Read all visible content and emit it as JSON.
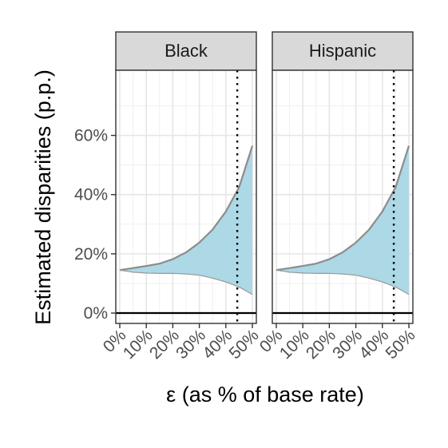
{
  "chart_data": {
    "type": "area",
    "xlabel": "ε (as % of base rate)",
    "ylabel": "Estimated disparities (p.p.)",
    "x_ticks": [
      "0%",
      "10%",
      "20%",
      "30%",
      "40%",
      "50%"
    ],
    "x_tick_values": [
      0,
      10,
      20,
      30,
      40,
      50
    ],
    "y_ticks": [
      "0%",
      "20%",
      "40%",
      "60%"
    ],
    "y_tick_values": [
      0,
      20,
      40,
      60
    ],
    "xlim": [
      -1.5,
      51.5
    ],
    "ylim": [
      -3.5,
      82
    ],
    "grid": true,
    "reference_line": {
      "y": 0
    },
    "panels": [
      {
        "name": "Black",
        "vline_x": 44.3,
        "series": [
          {
            "name": "upper_bound",
            "x": [
              0,
              5,
              10,
              15,
              20,
              25,
              30,
              35,
              40,
              45,
              50
            ],
            "y": [
              14.5,
              15.2,
              15.9,
              16.7,
              18.2,
              20.5,
              23.8,
              28.2,
              34.3,
              42.5,
              56.5
            ]
          },
          {
            "name": "lower_bound",
            "x": [
              0,
              5,
              10,
              15,
              20,
              25,
              30,
              35,
              40,
              45,
              50
            ],
            "y": [
              14.5,
              13.8,
              13.5,
              13.4,
              13.4,
              13.2,
              12.8,
              11.8,
              10.5,
              8.8,
              6.3
            ]
          }
        ]
      },
      {
        "name": "Hispanic",
        "vline_x": 44.3,
        "series": [
          {
            "name": "upper_bound",
            "x": [
              0,
              5,
              10,
              15,
              20,
              25,
              30,
              35,
              40,
              45,
              50
            ],
            "y": [
              14.5,
              15.2,
              15.9,
              16.7,
              18.2,
              20.5,
              23.8,
              28.2,
              34.3,
              42.5,
              56.5
            ]
          },
          {
            "name": "lower_bound",
            "x": [
              0,
              5,
              10,
              15,
              20,
              25,
              30,
              35,
              40,
              45,
              50
            ],
            "y": [
              14.5,
              13.8,
              13.5,
              13.4,
              13.4,
              13.2,
              12.8,
              11.8,
              10.5,
              8.8,
              6.3
            ]
          }
        ]
      }
    ],
    "colors": {
      "fill": "#add8e6",
      "upper_edge": "#8c8c8c",
      "lower_edge": "#999999",
      "strip_bg": "#d9d9d9"
    }
  }
}
